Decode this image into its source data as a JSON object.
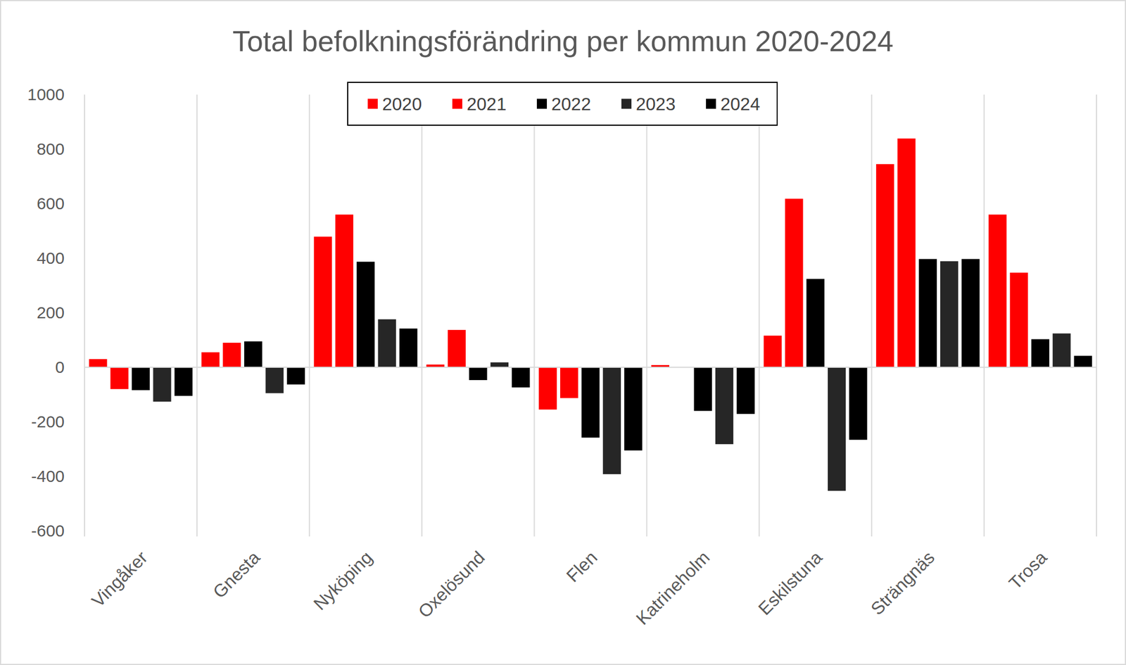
{
  "chart_data": {
    "type": "bar",
    "title": "Total befolkningsförändring per kommun 2020-2024",
    "categories": [
      "Vingåker",
      "Gnesta",
      "Nyköping",
      "Oxelösund",
      "Flen",
      "Katrineholm",
      "Eskilstuna",
      "Strängnäs",
      "Trosa"
    ],
    "series": [
      {
        "name": "2020",
        "color": "#ff0000",
        "values": [
          30,
          55,
          479,
          10,
          -155,
          8,
          116,
          745,
          560
        ]
      },
      {
        "name": "2021",
        "color": "#ff0000",
        "values": [
          -80,
          90,
          560,
          137,
          -113,
          0,
          618,
          839,
          347
        ]
      },
      {
        "name": "2022",
        "color": "#000000",
        "values": [
          -84,
          95,
          387,
          -47,
          -258,
          -160,
          324,
          397,
          103
        ]
      },
      {
        "name": "2023",
        "color": "#262626",
        "values": [
          -126,
          -95,
          176,
          18,
          -392,
          -282,
          -453,
          389,
          124
        ]
      },
      {
        "name": "2024",
        "color": "#000000",
        "values": [
          -105,
          -63,
          142,
          -74,
          -305,
          -171,
          -266,
          397,
          42
        ]
      }
    ],
    "ylim": [
      -600,
      1000
    ],
    "yticks": [
      -600,
      -400,
      -200,
      0,
      200,
      400,
      600,
      800,
      1000
    ],
    "grid": true,
    "legend": "top"
  }
}
